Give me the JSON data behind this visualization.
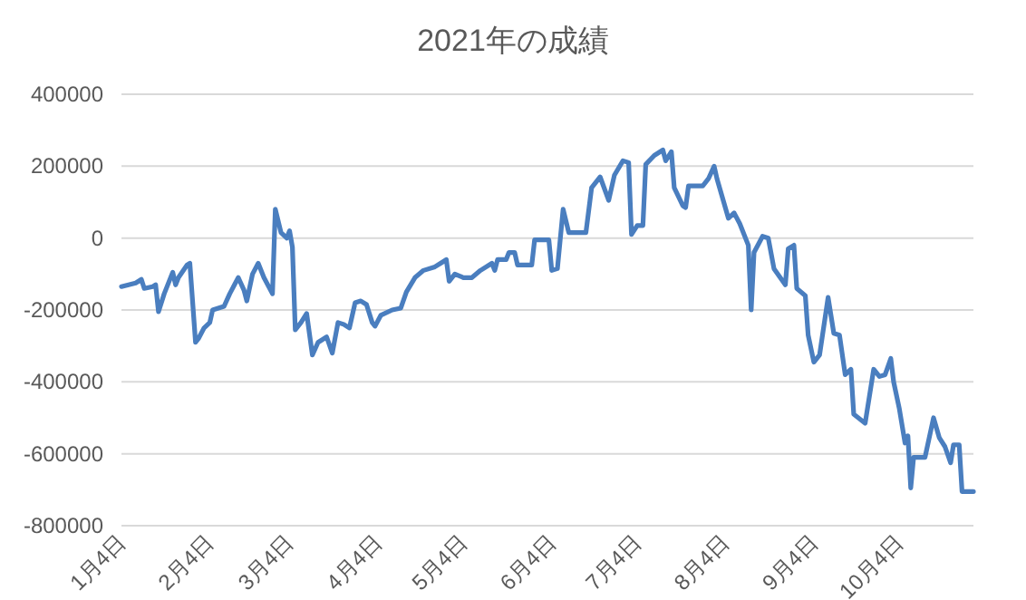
{
  "chart_data": {
    "type": "line",
    "title": "2021年の成績",
    "x": [
      "2021-01-04",
      "2021-01-09",
      "2021-01-11",
      "2021-01-12",
      "2021-01-15",
      "2021-01-16",
      "2021-01-17",
      "2021-01-19",
      "2021-01-22",
      "2021-01-23",
      "2021-01-24",
      "2021-01-27",
      "2021-01-28",
      "2021-01-30",
      "2021-01-31",
      "2021-02-02",
      "2021-02-04",
      "2021-02-05",
      "2021-02-07",
      "2021-02-09",
      "2021-02-11",
      "2021-02-14",
      "2021-02-16",
      "2021-02-17",
      "2021-02-19",
      "2021-02-21",
      "2021-02-23",
      "2021-02-26",
      "2021-02-27",
      "2021-03-01",
      "2021-03-03",
      "2021-03-04",
      "2021-03-05",
      "2021-03-06",
      "2021-03-08",
      "2021-03-10",
      "2021-03-12",
      "2021-03-14",
      "2021-03-17",
      "2021-03-19",
      "2021-03-21",
      "2021-03-23",
      "2021-03-25",
      "2021-03-27",
      "2021-03-29",
      "2021-03-31",
      "2021-04-02",
      "2021-04-03",
      "2021-04-05",
      "2021-04-09",
      "2021-04-12",
      "2021-04-14",
      "2021-04-17",
      "2021-04-20",
      "2021-04-24",
      "2021-04-26",
      "2021-04-28",
      "2021-04-29",
      "2021-05-01",
      "2021-05-04",
      "2021-05-07",
      "2021-05-10",
      "2021-05-14",
      "2021-05-15",
      "2021-05-16",
      "2021-05-19",
      "2021-05-20",
      "2021-05-22",
      "2021-05-23",
      "2021-05-28",
      "2021-05-29",
      "2021-06-03",
      "2021-06-04",
      "2021-06-06",
      "2021-06-08",
      "2021-06-10",
      "2021-06-16",
      "2021-06-18",
      "2021-06-21",
      "2021-06-24",
      "2021-06-26",
      "2021-06-29",
      "2021-07-01",
      "2021-07-02",
      "2021-07-04",
      "2021-07-06",
      "2021-07-07",
      "2021-07-10",
      "2021-07-13",
      "2021-07-14",
      "2021-07-16",
      "2021-07-17",
      "2021-07-20",
      "2021-07-21",
      "2021-07-22",
      "2021-07-27",
      "2021-07-29",
      "2021-07-31",
      "2021-08-01",
      "2021-08-05",
      "2021-08-07",
      "2021-08-09",
      "2021-08-12",
      "2021-08-13",
      "2021-08-14",
      "2021-08-17",
      "2021-08-19",
      "2021-08-21",
      "2021-08-25",
      "2021-08-26",
      "2021-08-28",
      "2021-08-29",
      "2021-09-01",
      "2021-09-02",
      "2021-09-04",
      "2021-09-06",
      "2021-09-09",
      "2021-09-11",
      "2021-09-13",
      "2021-09-15",
      "2021-09-17",
      "2021-09-18",
      "2021-09-22",
      "2021-09-25",
      "2021-09-27",
      "2021-09-29",
      "2021-10-01",
      "2021-10-02",
      "2021-10-04",
      "2021-10-06",
      "2021-10-07",
      "2021-10-08",
      "2021-10-09",
      "2021-10-13",
      "2021-10-16",
      "2021-10-18",
      "2021-10-20",
      "2021-10-22",
      "2021-10-23",
      "2021-10-25",
      "2021-10-26",
      "2021-10-30"
    ],
    "series": [
      {
        "color": "#4a7ebf",
        "values": [
          -135000,
          -125000,
          -115000,
          -140000,
          -135000,
          -130000,
          -205000,
          -155000,
          -95000,
          -130000,
          -110000,
          -75000,
          -70000,
          -290000,
          -280000,
          -250000,
          -235000,
          -200000,
          -195000,
          -190000,
          -155000,
          -110000,
          -145000,
          -175000,
          -100000,
          -70000,
          -110000,
          -155000,
          80000,
          15000,
          0,
          20000,
          -25000,
          -255000,
          -235000,
          -210000,
          -325000,
          -290000,
          -275000,
          -320000,
          -235000,
          -240000,
          -250000,
          -180000,
          -175000,
          -185000,
          -235000,
          -245000,
          -215000,
          -200000,
          -195000,
          -150000,
          -110000,
          -90000,
          -80000,
          -70000,
          -60000,
          -120000,
          -100000,
          -110000,
          -110000,
          -90000,
          -70000,
          -90000,
          -60000,
          -60000,
          -40000,
          -40000,
          -75000,
          -75000,
          -5000,
          -5000,
          -90000,
          -85000,
          80000,
          15000,
          15000,
          140000,
          170000,
          105000,
          175000,
          215000,
          210000,
          10000,
          35000,
          35000,
          205000,
          230000,
          245000,
          215000,
          240000,
          140000,
          90000,
          85000,
          145000,
          145000,
          165000,
          200000,
          165000,
          55000,
          70000,
          40000,
          -20000,
          -200000,
          -40000,
          5000,
          0,
          -85000,
          -130000,
          -30000,
          -20000,
          -140000,
          -160000,
          -270000,
          -345000,
          -325000,
          -165000,
          -265000,
          -270000,
          -380000,
          -365000,
          -490000,
          -515000,
          -365000,
          -385000,
          -380000,
          -335000,
          -400000,
          -475000,
          -570000,
          -550000,
          -695000,
          -610000,
          -610000,
          -500000,
          -555000,
          -580000,
          -625000,
          -575000,
          -575000,
          -705000,
          -705000
        ]
      }
    ],
    "xlim": [
      "2021-01-04",
      "2021-10-30"
    ],
    "xticks": [
      {
        "value": "2021-01-04",
        "label": "1月4日"
      },
      {
        "value": "2021-02-04",
        "label": "2月4日"
      },
      {
        "value": "2021-03-04",
        "label": "3月4日"
      },
      {
        "value": "2021-04-04",
        "label": "4月4日"
      },
      {
        "value": "2021-05-04",
        "label": "5月4日"
      },
      {
        "value": "2021-06-04",
        "label": "6月4日"
      },
      {
        "value": "2021-07-04",
        "label": "7月4日"
      },
      {
        "value": "2021-08-04",
        "label": "8月4日"
      },
      {
        "value": "2021-09-04",
        "label": "9月4日"
      },
      {
        "value": "2021-10-04",
        "label": "10月4日"
      }
    ],
    "ylim": [
      -800000,
      400000
    ],
    "yticks": [
      -800000,
      -600000,
      -400000,
      -200000,
      0,
      200000,
      400000
    ],
    "grid": "y"
  }
}
